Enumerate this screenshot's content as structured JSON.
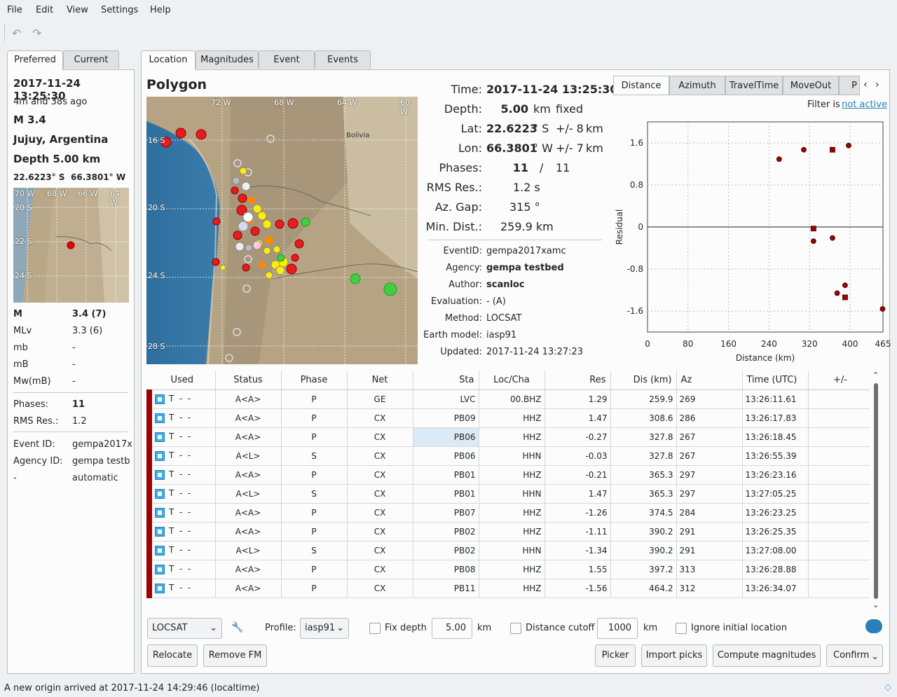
{
  "menu": {
    "file": "File",
    "edit": "Edit",
    "view": "View",
    "settings": "Settings",
    "help": "Help"
  },
  "left": {
    "tabs": {
      "preferred": "Preferred",
      "current": "Current"
    },
    "time": "2017-11-24 13:25:30",
    "ago": "4m and 38s ago",
    "mag": "M 3.4",
    "region": "Jujuy, Argentina",
    "depth": "Depth 5.00 km",
    "lat": "22.6223° S",
    "lon": "66.3801° W",
    "map_labels": {
      "lon1": "70 W",
      "lon2": "68 W",
      "lon3": "66 W",
      "lon4": "64 W",
      "lat1": "20 S",
      "lat2": "22 S",
      "lat3": "24 S"
    },
    "mags": [
      {
        "name": "M",
        "value": "3.4 (7)"
      },
      {
        "name": "MLv",
        "value": "3.3 (6)"
      },
      {
        "name": "mb",
        "value": "-"
      },
      {
        "name": "mB",
        "value": "-"
      },
      {
        "name": "Mw(mB)",
        "value": "-"
      }
    ],
    "phases_label": "Phases:",
    "phases": "11",
    "rms_label": "RMS Res.:",
    "rms": "1.2",
    "event_label": "Event ID:",
    "event_id": "gempa2017x",
    "agency_label": "Agency ID:",
    "agency_id": "gempa testb",
    "mode_label": "-",
    "mode": "automatic"
  },
  "tabs": {
    "location": "Location",
    "magnitudes": "Magnitudes",
    "event": "Event",
    "events": "Events"
  },
  "location": {
    "title": "Polygon",
    "map_labels": {
      "lon1": "72 W",
      "lon2": "68 W",
      "lon3": "64 W",
      "lon4": "60 W",
      "lat1": "16 S",
      "lat2": "20 S",
      "lat3": "24 S",
      "lat4": "28 S",
      "country": "Bolivia"
    },
    "time_label": "Time:",
    "time": "2017-11-24 13:25:30",
    "depth_label": "Depth:",
    "depth": "5.00",
    "depth_unit": "km",
    "depth_flag": "fixed",
    "lat_label": "Lat:",
    "lat": "22.6223",
    "lat_unit": "° S",
    "lat_err": "+/- 8",
    "lat_err_unit": "km",
    "lon_label": "Lon:",
    "lon": "66.3801",
    "lon_unit": "° W",
    "lon_err": "+/- 7",
    "lon_err_unit": "km",
    "phases_label": "Phases:",
    "phases_used": "11",
    "phases_sep": "/",
    "phases_total": "11",
    "rms_label": "RMS Res.:",
    "rms": "1.2 s",
    "gap_label": "Az. Gap:",
    "gap": "315 °",
    "mindist_label": "Min. Dist.:",
    "mindist": "259.9 km",
    "eventid_label": "EventID:",
    "eventid": "gempa2017xamc",
    "agency_label": "Agency:",
    "agency": "gempa testbed",
    "author_label": "Author:",
    "author": "scanloc",
    "evaluation_label": "Evaluation:",
    "evaluation": "- (A)",
    "method_label": "Method:",
    "method": "LOCSAT",
    "earthmodel_label": "Earth model:",
    "earthmodel": "iasp91",
    "updated_label": "Updated:",
    "updated": "2017-11-24 13:27:23"
  },
  "plot_tabs": {
    "distance": "Distance",
    "azimuth": "Azimuth",
    "traveltime": "TravelTime",
    "moveout": "MoveOut",
    "more": "P"
  },
  "filter": {
    "label": "Filter is",
    "link": "not active"
  },
  "chart_data": {
    "type": "scatter",
    "xlabel": "Distance (km)",
    "ylabel": "Residual",
    "xlim": [
      0,
      465
    ],
    "ylim": [
      -2.0,
      2.0
    ],
    "xticks": [
      "0",
      "80",
      "160",
      "240",
      "320",
      "400",
      "465"
    ],
    "xtick_values": [
      0,
      80,
      160,
      240,
      320,
      400,
      465
    ],
    "yticks": [
      "1.6",
      "0.8",
      "0",
      "-0.8",
      "-1.6"
    ],
    "ytick_values": [
      1.6,
      0.8,
      0,
      -0.8,
      -1.6
    ],
    "series": [
      {
        "name": "P",
        "marker": "circle",
        "x": [
          259.9,
          308.6,
          327.8,
          365.3,
          374.5,
          390.2,
          397.2,
          464.2
        ],
        "y": [
          1.29,
          1.47,
          -0.27,
          -0.21,
          -1.26,
          -1.11,
          1.55,
          -1.56
        ]
      },
      {
        "name": "S",
        "marker": "square",
        "x": [
          327.8,
          365.3,
          390.2
        ],
        "y": [
          -0.03,
          1.47,
          -1.34
        ]
      }
    ]
  },
  "table": {
    "headers": [
      "Used",
      "Status",
      "Phase",
      "Net",
      "Sta",
      "Loc/Cha",
      "Res",
      "Dis (km)",
      "Az",
      "Time (UTC)",
      "+/-"
    ],
    "rows": [
      {
        "used": "T  -  -",
        "status": "A<A>",
        "phase": "P",
        "net": "GE",
        "sta": "LVC",
        "loccha": "00.BHZ",
        "res": "1.29",
        "dis": "259.9",
        "az": "269",
        "time": "13:26:11.61"
      },
      {
        "used": "T  -  -",
        "status": "A<A>",
        "phase": "P",
        "net": "CX",
        "sta": "PB09",
        "loccha": "HHZ",
        "res": "1.47",
        "dis": "308.6",
        "az": "286",
        "time": "13:26:17.83"
      },
      {
        "used": "T  -  -",
        "status": "A<A>",
        "phase": "P",
        "net": "CX",
        "sta": "PB06",
        "loccha": "HHZ",
        "res": "-0.27",
        "dis": "327.8",
        "az": "267",
        "time": "13:26:18.45"
      },
      {
        "used": "T  -  -",
        "status": "A<L>",
        "phase": "S",
        "net": "CX",
        "sta": "PB06",
        "loccha": "HHN",
        "res": "-0.03",
        "dis": "327.8",
        "az": "267",
        "time": "13:26:55.39"
      },
      {
        "used": "T  -  -",
        "status": "A<A>",
        "phase": "P",
        "net": "CX",
        "sta": "PB01",
        "loccha": "HHZ",
        "res": "-0.21",
        "dis": "365.3",
        "az": "297",
        "time": "13:26:23.16"
      },
      {
        "used": "T  -  -",
        "status": "A<L>",
        "phase": "S",
        "net": "CX",
        "sta": "PB01",
        "loccha": "HHN",
        "res": "1.47",
        "dis": "365.3",
        "az": "297",
        "time": "13:27:05.25"
      },
      {
        "used": "T  -  -",
        "status": "A<A>",
        "phase": "P",
        "net": "CX",
        "sta": "PB07",
        "loccha": "HHZ",
        "res": "-1.26",
        "dis": "374.5",
        "az": "284",
        "time": "13:26:23.25"
      },
      {
        "used": "T  -  -",
        "status": "A<A>",
        "phase": "P",
        "net": "CX",
        "sta": "PB02",
        "loccha": "HHZ",
        "res": "-1.11",
        "dis": "390.2",
        "az": "291",
        "time": "13:26:25.35"
      },
      {
        "used": "T  -  -",
        "status": "A<L>",
        "phase": "S",
        "net": "CX",
        "sta": "PB02",
        "loccha": "HHN",
        "res": "-1.34",
        "dis": "390.2",
        "az": "291",
        "time": "13:27:08.00"
      },
      {
        "used": "T  -  -",
        "status": "A<A>",
        "phase": "P",
        "net": "CX",
        "sta": "PB08",
        "loccha": "HHZ",
        "res": "1.55",
        "dis": "397.2",
        "az": "313",
        "time": "13:26:28.88"
      },
      {
        "used": "T  -  -",
        "status": "A<A>",
        "phase": "P",
        "net": "CX",
        "sta": "PB11",
        "loccha": "HHZ",
        "res": "-1.56",
        "dis": "464.2",
        "az": "312",
        "time": "13:26:34.07"
      }
    ]
  },
  "controls": {
    "locator": "LOCSAT",
    "profile_label": "Profile:",
    "profile": "iasp91",
    "fix_depth": "Fix depth",
    "fix_depth_value": "5.00",
    "km1": "km",
    "distance_cutoff": "Distance cutoff",
    "cutoff_value": "1000",
    "km2": "km",
    "ignore_initial": "Ignore initial location",
    "relocate": "Relocate",
    "remove_fm": "Remove FM",
    "picker": "Picker",
    "import_picks": "Import picks",
    "compute_magnitudes": "Compute magnitudes",
    "confirm": "Confirm"
  },
  "status": "A new origin arrived at 2017-11-24 14:29:46 (localtime)",
  "colors": {
    "accent": "#3daee9",
    "residual_marker": "#a00000",
    "row_marker": "#a00000"
  }
}
